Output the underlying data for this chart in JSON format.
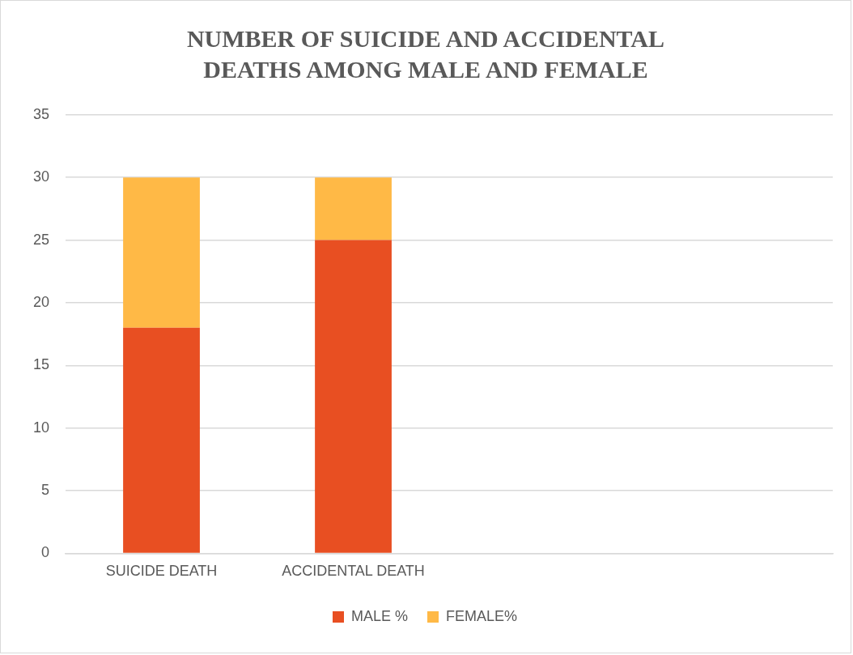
{
  "chart_data": {
    "type": "bar",
    "title": "NUMBER OF SUICIDE AND ACCIDENTAL DEATHS AMONG MALE AND FEMALE",
    "categories": [
      "SUICIDE DEATH",
      "ACCIDENTAL DEATH",
      null,
      null
    ],
    "series": [
      {
        "name": "MALE %",
        "color": "#e84f22",
        "values": [
          18,
          25,
          null,
          null
        ]
      },
      {
        "name": "FEMALE%",
        "color": "#ffb946",
        "values": [
          12,
          5,
          null,
          null
        ]
      }
    ],
    "stacked": true,
    "ylim": [
      0,
      35
    ],
    "yticks": [
      0,
      5,
      10,
      15,
      20,
      25,
      30,
      35
    ],
    "grid": "y",
    "legend": "bottom"
  }
}
